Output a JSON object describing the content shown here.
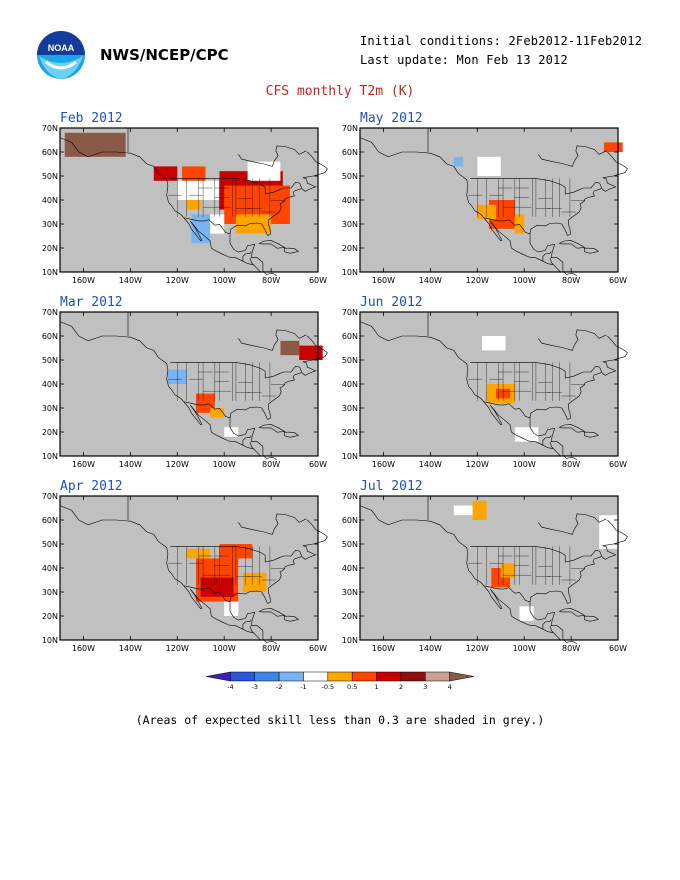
{
  "header": {
    "agency": "NWS/NCEP/CPC",
    "logo_text": "NOAA",
    "initial_conditions": "Initial conditions: 2Feb2012-11Feb2012",
    "last_update": "Last update: Mon Feb 13 2012"
  },
  "figure_title": "CFS monthly T2m (K)",
  "lat_labels": [
    "70N",
    "60N",
    "50N",
    "40N",
    "30N",
    "20N",
    "10N"
  ],
  "lon_labels": [
    "160W",
    "140W",
    "120W",
    "100W",
    "80W",
    "60W"
  ],
  "panels": [
    {
      "title": "Feb 2012",
      "anomaly_regions": [
        {
          "lon": [
            -168,
            -142
          ],
          "lat": [
            58,
            68
          ],
          "class": "4"
        },
        {
          "lon": [
            -130,
            -120
          ],
          "lat": [
            48,
            54
          ],
          "class": "3"
        },
        {
          "lon": [
            -118,
            -108
          ],
          "lat": [
            46,
            54
          ],
          "class": "2"
        },
        {
          "lon": [
            -102,
            -75
          ],
          "lat": [
            36,
            52
          ],
          "class": "3"
        },
        {
          "lon": [
            -100,
            -72
          ],
          "lat": [
            30,
            46
          ],
          "class": "2"
        },
        {
          "lon": [
            -95,
            -80
          ],
          "lat": [
            26,
            34
          ],
          "class": "1"
        },
        {
          "lon": [
            -116,
            -110
          ],
          "lat": [
            36,
            42
          ],
          "class": "1"
        },
        {
          "lon": [
            -120,
            -102
          ],
          "lat": [
            40,
            48
          ],
          "class": "0"
        },
        {
          "lon": [
            -114,
            -106
          ],
          "lat": [
            22,
            34
          ],
          "class": "-1"
        },
        {
          "lon": [
            -106,
            -100
          ],
          "lat": [
            26,
            34
          ],
          "class": "0"
        },
        {
          "lon": [
            -90,
            -76
          ],
          "lat": [
            48,
            56
          ],
          "class": "0"
        }
      ]
    },
    {
      "title": "May 2012",
      "anomaly_regions": [
        {
          "lon": [
            -115,
            -104
          ],
          "lat": [
            28,
            40
          ],
          "class": "2"
        },
        {
          "lon": [
            -120,
            -112
          ],
          "lat": [
            32,
            38
          ],
          "class": "1"
        },
        {
          "lon": [
            -104,
            -100
          ],
          "lat": [
            26,
            34
          ],
          "class": "1"
        },
        {
          "lon": [
            -120,
            -110
          ],
          "lat": [
            50,
            58
          ],
          "class": "0"
        },
        {
          "lon": [
            -130,
            -126
          ],
          "lat": [
            54,
            58
          ],
          "class": "-1"
        },
        {
          "lon": [
            -66,
            -58
          ],
          "lat": [
            60,
            64
          ],
          "class": "2"
        }
      ]
    },
    {
      "title": "Mar 2012",
      "anomaly_regions": [
        {
          "lon": [
            -112,
            -104
          ],
          "lat": [
            28,
            36
          ],
          "class": "2"
        },
        {
          "lon": [
            -106,
            -100
          ],
          "lat": [
            26,
            30
          ],
          "class": "1"
        },
        {
          "lon": [
            -124,
            -116
          ],
          "lat": [
            40,
            46
          ],
          "class": "-1"
        },
        {
          "lon": [
            -68,
            -58
          ],
          "lat": [
            50,
            56
          ],
          "class": "3"
        },
        {
          "lon": [
            -76,
            -68
          ],
          "lat": [
            52,
            58
          ],
          "class": "4"
        },
        {
          "lon": [
            -100,
            -94
          ],
          "lat": [
            18,
            22
          ],
          "class": "0"
        }
      ]
    },
    {
      "title": "Jun 2012",
      "anomaly_regions": [
        {
          "lon": [
            -116,
            -104
          ],
          "lat": [
            32,
            40
          ],
          "class": "1"
        },
        {
          "lon": [
            -112,
            -106
          ],
          "lat": [
            34,
            38
          ],
          "class": "2"
        },
        {
          "lon": [
            -118,
            -108
          ],
          "lat": [
            54,
            60
          ],
          "class": "0"
        },
        {
          "lon": [
            -104,
            -94
          ],
          "lat": [
            16,
            22
          ],
          "class": "0"
        }
      ]
    },
    {
      "title": "Apr 2012",
      "anomaly_regions": [
        {
          "lon": [
            -112,
            -94
          ],
          "lat": [
            26,
            44
          ],
          "class": "2"
        },
        {
          "lon": [
            -110,
            -96
          ],
          "lat": [
            28,
            36
          ],
          "class": "3"
        },
        {
          "lon": [
            -116,
            -106
          ],
          "lat": [
            44,
            48
          ],
          "class": "1"
        },
        {
          "lon": [
            -102,
            -88
          ],
          "lat": [
            44,
            50
          ],
          "class": "2"
        },
        {
          "lon": [
            -92,
            -82
          ],
          "lat": [
            30,
            38
          ],
          "class": "1"
        },
        {
          "lon": [
            -100,
            -94
          ],
          "lat": [
            20,
            26
          ],
          "class": "0"
        }
      ]
    },
    {
      "title": "Jul 2012",
      "anomaly_regions": [
        {
          "lon": [
            -114,
            -106
          ],
          "lat": [
            32,
            40
          ],
          "class": "2"
        },
        {
          "lon": [
            -110,
            -104
          ],
          "lat": [
            36,
            42
          ],
          "class": "1"
        },
        {
          "lon": [
            -122,
            -116
          ],
          "lat": [
            60,
            68
          ],
          "class": "1"
        },
        {
          "lon": [
            -130,
            -122
          ],
          "lat": [
            62,
            66
          ],
          "class": "0"
        },
        {
          "lon": [
            -68,
            -58
          ],
          "lat": [
            48,
            62
          ],
          "class": "0"
        },
        {
          "lon": [
            -102,
            -96
          ],
          "lat": [
            18,
            24
          ],
          "class": "0"
        }
      ]
    }
  ],
  "colorbar": {
    "labels": [
      "-4",
      "-3",
      "-2",
      "-1",
      "-0.5",
      "0.5",
      "1",
      "2",
      "3",
      "4"
    ],
    "colors": [
      "#3a1fb0",
      "#2a55d8",
      "#3d86e8",
      "#79b4f0",
      "#ffffff",
      "#ffa500",
      "#ff4500",
      "#c80000",
      "#8a1010",
      "#c9a091",
      "#8a5a48"
    ]
  },
  "footnote": "(Areas of expected skill less than 0.3 are shaded in grey.)"
}
